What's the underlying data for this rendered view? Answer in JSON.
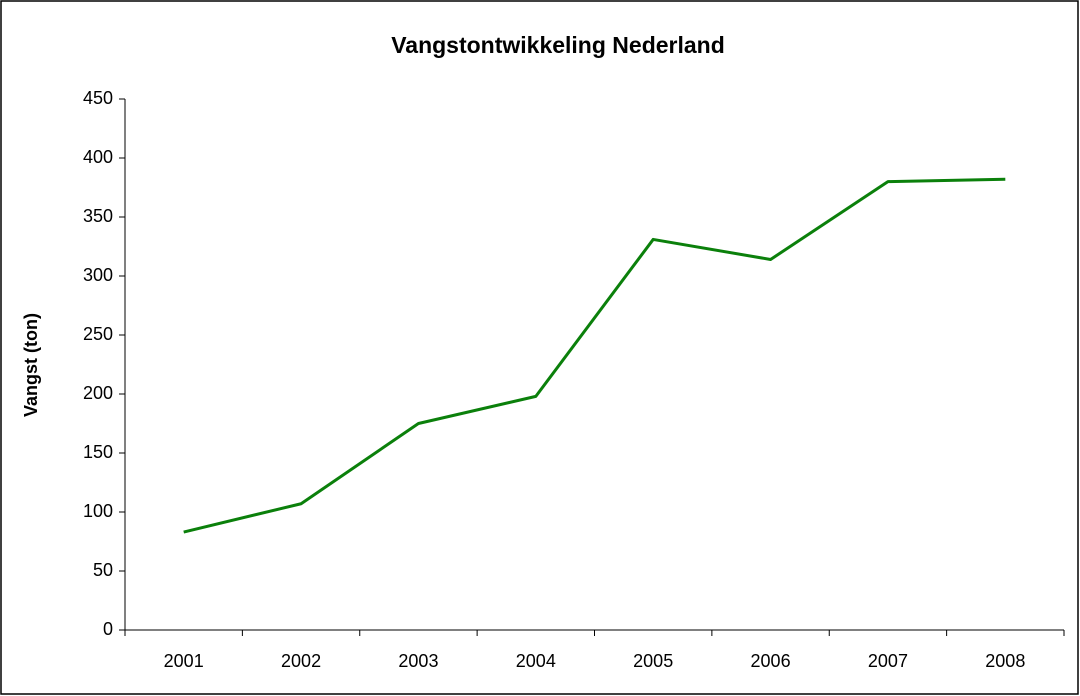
{
  "chart_data": {
    "type": "line",
    "title": "Vangstontwikkeling Nederland",
    "y_label": "Vangst (ton)",
    "categories": [
      "2001",
      "2002",
      "2003",
      "2004",
      "2005",
      "2006",
      "2007",
      "2008"
    ],
    "values": [
      83,
      107,
      175,
      198,
      331,
      314,
      380,
      382
    ],
    "color": "#0b800b",
    "ylim": [
      0,
      450
    ],
    "yticks": [
      0,
      50,
      100,
      150,
      200,
      250,
      300,
      350,
      400,
      450
    ],
    "grid": false
  }
}
